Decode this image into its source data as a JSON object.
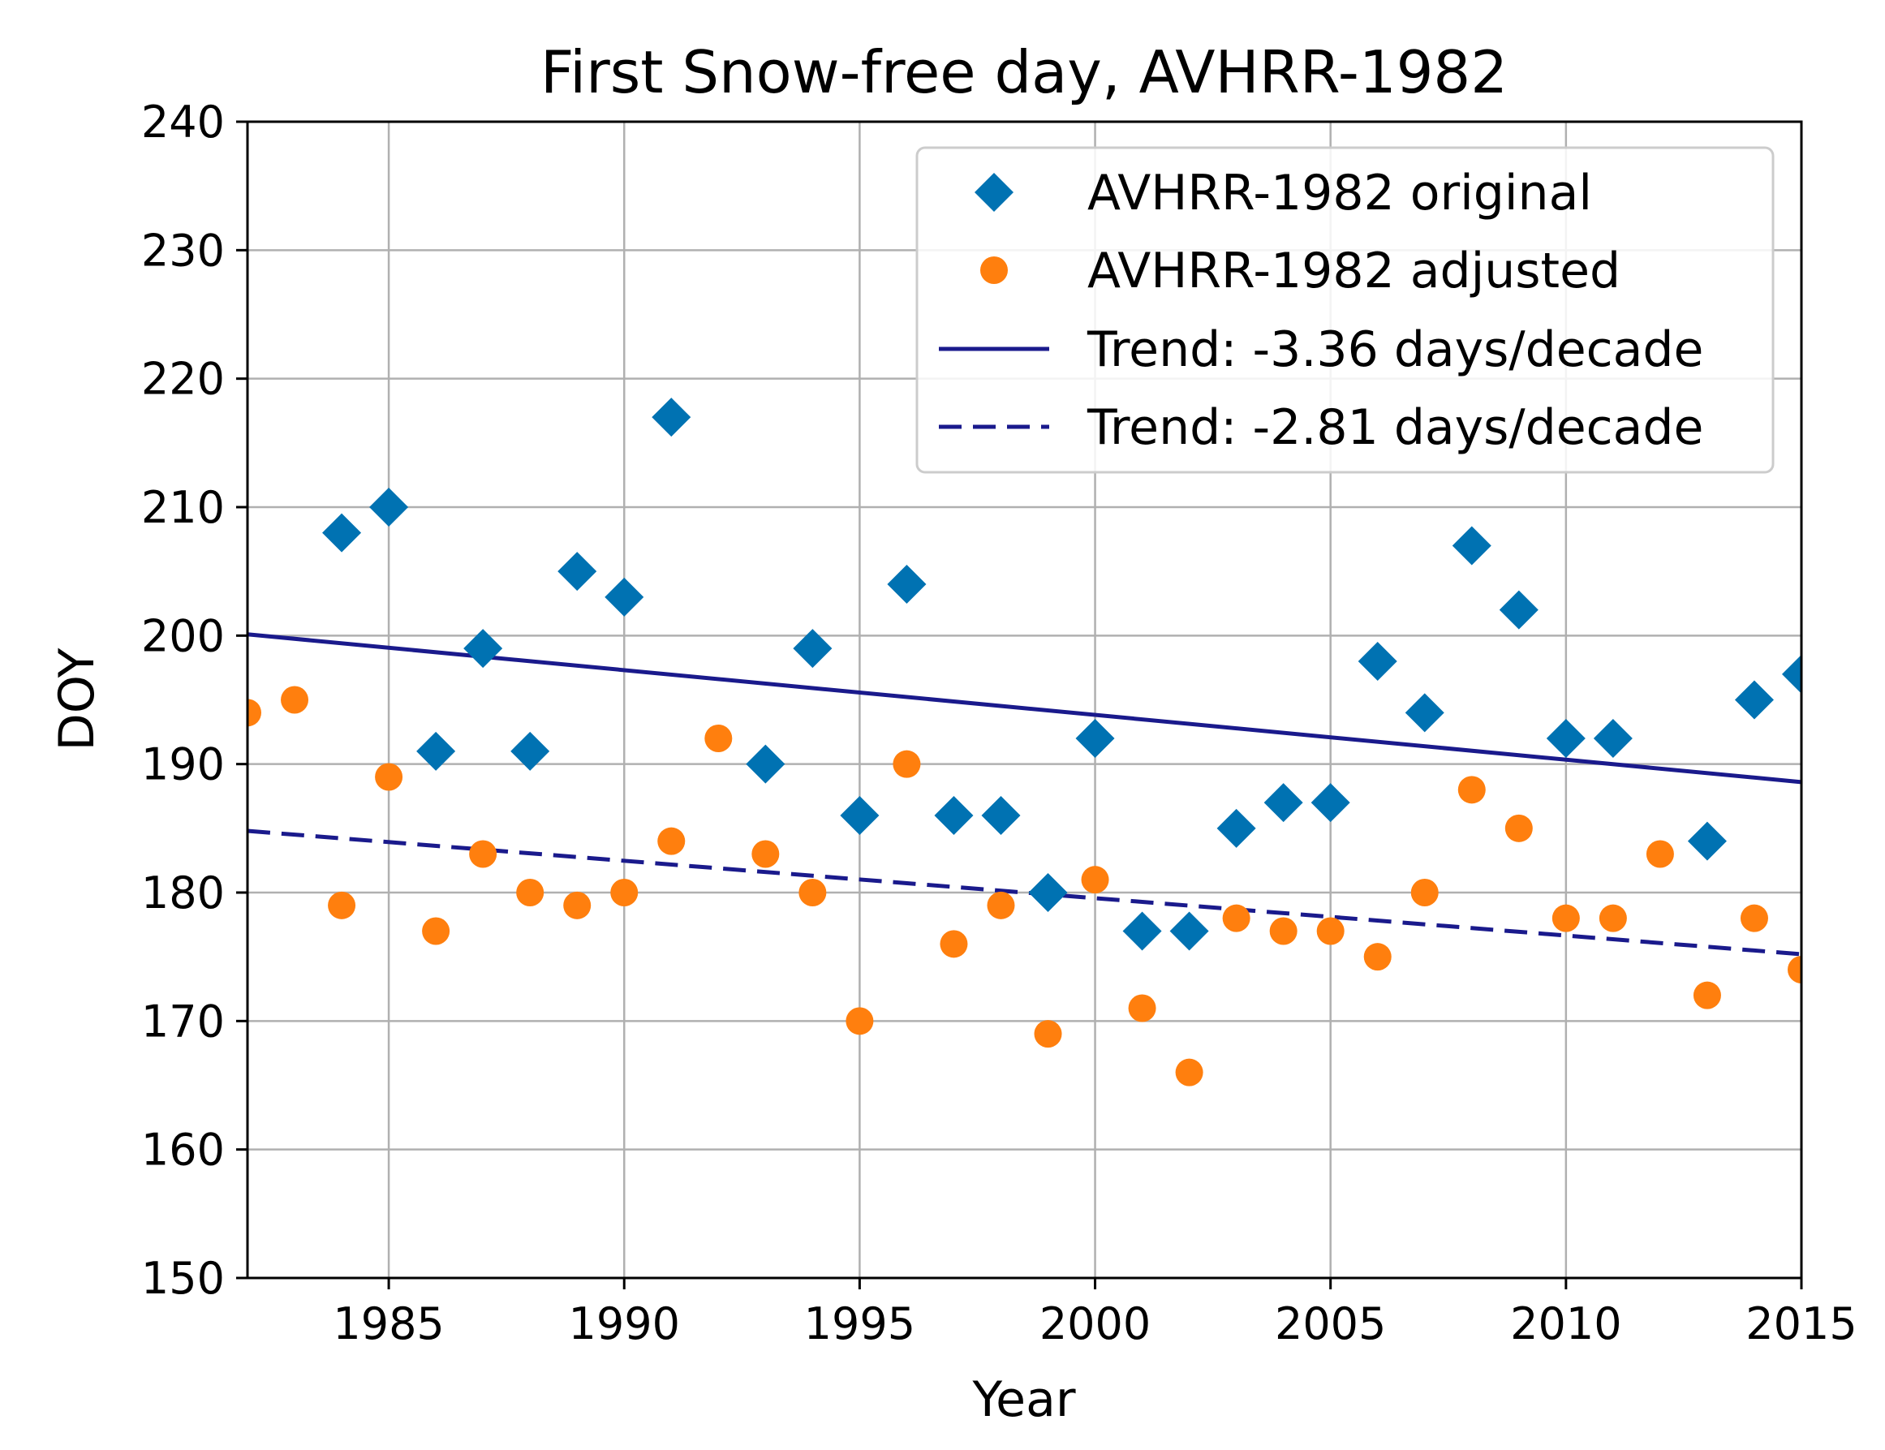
{
  "chart_data": {
    "type": "scatter",
    "title": "First Snow-free day, AVHRR-1982",
    "xlabel": "Year",
    "ylabel": "DOY",
    "xlim": [
      1982,
      2015
    ],
    "ylim": [
      150,
      240
    ],
    "xticks": [
      1985,
      1990,
      1995,
      2000,
      2005,
      2010,
      2015
    ],
    "yticks": [
      150,
      160,
      170,
      180,
      190,
      200,
      210,
      220,
      230,
      240
    ],
    "grid": true,
    "legend_position": "top-right",
    "series": [
      {
        "name": "AVHRR-1982 original",
        "kind": "marker",
        "marker": "diamond",
        "color": "#0072b2",
        "x": [
          1984,
          1985,
          1986,
          1987,
          1988,
          1989,
          1990,
          1991,
          1993,
          1994,
          1995,
          1996,
          1997,
          1998,
          1999,
          2000,
          2001,
          2002,
          2003,
          2004,
          2005,
          2006,
          2007,
          2008,
          2009,
          2010,
          2011,
          2013,
          2014,
          2015
        ],
        "y": [
          208,
          210,
          191,
          199,
          191,
          205,
          203,
          217,
          190,
          199,
          186,
          204,
          186,
          186,
          180,
          192,
          177,
          177,
          185,
          187,
          187,
          198,
          194,
          207,
          202,
          192,
          192,
          184,
          195,
          197
        ]
      },
      {
        "name": "AVHRR-1982 adjusted",
        "kind": "marker",
        "marker": "circle",
        "color": "#ff7f0e",
        "x": [
          1982,
          1983,
          1984,
          1985,
          1986,
          1987,
          1988,
          1989,
          1990,
          1991,
          1992,
          1993,
          1994,
          1995,
          1996,
          1997,
          1998,
          1999,
          2000,
          2001,
          2002,
          2003,
          2004,
          2005,
          2006,
          2007,
          2008,
          2009,
          2010,
          2011,
          2012,
          2013,
          2014,
          2015
        ],
        "y": [
          194,
          195,
          179,
          189,
          177,
          183,
          180,
          179,
          180,
          184,
          192,
          183,
          180,
          170,
          190,
          176,
          179,
          169,
          181,
          171,
          166,
          178,
          177,
          177,
          175,
          180,
          188,
          185,
          178,
          178,
          183,
          172,
          178,
          174
        ]
      },
      {
        "name": "Trend: -3.36 days/decade",
        "kind": "line",
        "dash": "solid",
        "color": "#1a1a8c",
        "x": [
          1982,
          2015
        ],
        "y": [
          200.1,
          188.6
        ]
      },
      {
        "name": "Trend: -2.81 days/decade",
        "kind": "line",
        "dash": "dashed",
        "color": "#1a1a8c",
        "x": [
          1982,
          2015
        ],
        "y": [
          184.8,
          175.2
        ]
      }
    ]
  }
}
